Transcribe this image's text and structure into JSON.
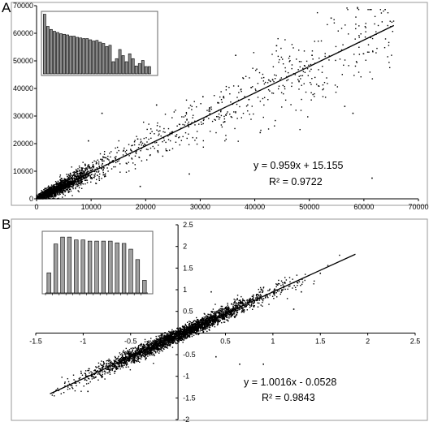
{
  "chart_data": [
    {
      "type": "scatter",
      "panel_label": "A",
      "xlim": [
        0,
        70000
      ],
      "ylim": [
        0,
        70000
      ],
      "x_ticks": [
        "0",
        "10000",
        "20000",
        "30000",
        "40000",
        "50000",
        "60000",
        "70000"
      ],
      "y_ticks": [
        "0",
        "10000",
        "20000",
        "30000",
        "40000",
        "50000",
        "60000",
        "70000"
      ],
      "grid": false,
      "trendline": {
        "slope": 0.959,
        "intercept": 15.155,
        "x_range": [
          0,
          65500
        ]
      },
      "equation": "y = 0.959x + 15.155",
      "r_squared": "R² = 0.9722",
      "point_spread": {
        "cluster_fraction": 0.6,
        "cluster_scale": 4500,
        "max_x": 65500,
        "typical_sd": 1600,
        "count": 2200
      },
      "outliers": [
        [
          54000,
          65500
        ],
        [
          50500,
          52000
        ],
        [
          36500,
          52000
        ],
        [
          56500,
          33500
        ],
        [
          61500,
          7500
        ],
        [
          58000,
          31000
        ],
        [
          41000,
          24000
        ],
        [
          12000,
          31000
        ],
        [
          19000,
          4500
        ],
        [
          28000,
          9000
        ],
        [
          22000,
          34000
        ],
        [
          9500,
          21000
        ],
        [
          30500,
          37000
        ],
        [
          44000,
          55500
        ]
      ],
      "inset": {
        "type": "bar",
        "values": [
          0.98,
          0.78,
          0.73,
          0.7,
          0.68,
          0.66,
          0.65,
          0.64,
          0.62,
          0.62,
          0.6,
          0.59,
          0.58,
          0.58,
          0.56,
          0.54,
          0.55,
          0.52,
          0.5,
          0.45,
          0.47,
          0.2,
          0.25,
          0.4,
          0.3,
          0.2,
          0.33,
          0.25,
          0.13,
          0.17,
          0.22,
          0.12,
          0.12
        ]
      }
    },
    {
      "type": "scatter",
      "panel_label": "B",
      "xlim": [
        -1.5,
        2.5
      ],
      "ylim": [
        -2,
        2.5
      ],
      "x_ticks": [
        "-1.5",
        "-1",
        "-0.5",
        "0",
        "0.5",
        "1",
        "1.5",
        "2",
        "2.5"
      ],
      "y_ticks": [
        "-2",
        "-1.5",
        "-1",
        "-0.5",
        "0",
        "0.5",
        "1",
        "1.5",
        "2",
        "2.5"
      ],
      "grid": false,
      "trendline": {
        "slope": 1.0016,
        "intercept": -0.0528,
        "x_range": [
          -1.35,
          1.87
        ]
      },
      "equation": "y = 1.0016x - 0.0528",
      "r_squared": "R² = 0.9843",
      "point_spread": {
        "center": 0,
        "sd_x": 0.45,
        "min_x": -1.35,
        "max_x": 1.75,
        "typical_sd": 0.075,
        "count": 3200
      },
      "outliers": [
        [
          0.65,
          -0.72
        ],
        [
          -0.25,
          -0.52
        ],
        [
          0.9,
          -0.72
        ],
        [
          1.22,
          0.55
        ],
        [
          1.3,
          0.95
        ],
        [
          0.35,
          0.95
        ],
        [
          -0.95,
          -1.35
        ],
        [
          1.5,
          1.38
        ],
        [
          0.4,
          -0.55
        ]
      ],
      "inset": {
        "type": "bar",
        "values": [
          0.35,
          0.85,
          0.97,
          0.97,
          0.92,
          0.92,
          0.9,
          0.9,
          0.9,
          0.9,
          0.87,
          0.86,
          0.76,
          0.58,
          0.22
        ]
      }
    }
  ]
}
